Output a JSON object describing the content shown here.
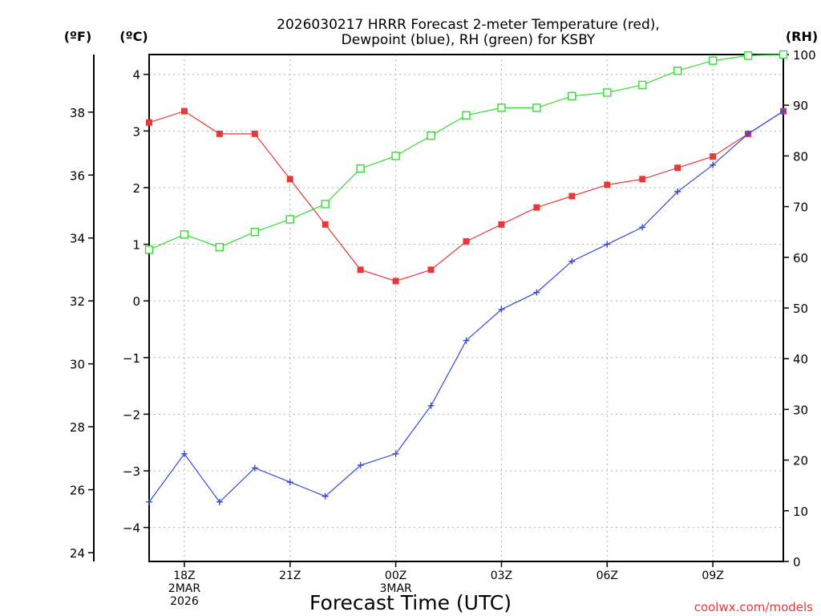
{
  "chart_data": {
    "type": "line",
    "title_lines": [
      "2026030217 HRRR Forecast 2-meter Temperature (red),",
      "Dewpoint (blue), RH (green) for KSBY"
    ],
    "xlabel": "Forecast Time (UTC)",
    "credit": "coolwx.com/models",
    "units": {
      "fahrenheit": "(ºF)",
      "celsius": "(ºC)",
      "rh": "(RH)"
    },
    "x_hours": [
      17,
      18,
      19,
      20,
      21,
      22,
      23,
      24,
      25,
      26,
      27,
      28,
      29,
      30,
      31,
      32,
      33,
      34,
      35
    ],
    "x_ticks": [
      {
        "hour": 18,
        "lines": [
          "18Z",
          "2MAR",
          "2026"
        ]
      },
      {
        "hour": 21,
        "lines": [
          "21Z"
        ]
      },
      {
        "hour": 24,
        "lines": [
          "00Z",
          "3MAR"
        ]
      },
      {
        "hour": 27,
        "lines": [
          "03Z"
        ]
      },
      {
        "hour": 30,
        "lines": [
          "06Z"
        ]
      },
      {
        "hour": 33,
        "lines": [
          "09Z"
        ]
      }
    ],
    "xlim": [
      17,
      35
    ],
    "ylim_celsius": [
      -4.6,
      4.35
    ],
    "ylim_fahrenheit": [
      23.72,
      39.83
    ],
    "ylim_rh": [
      0,
      100
    ],
    "celsius_ticks": [
      -4,
      -3,
      -2,
      -1,
      0,
      1,
      2,
      3,
      4
    ],
    "fahrenheit_ticks": [
      24,
      26,
      28,
      30,
      32,
      34,
      36,
      38
    ],
    "rh_ticks": [
      0,
      10,
      20,
      30,
      40,
      50,
      60,
      70,
      80,
      90,
      100
    ],
    "gridlines": true,
    "series": [
      {
        "name": "Temperature",
        "axis": "celsius",
        "color": "#e8393a",
        "marker": "filled-square",
        "values": [
          3.15,
          3.35,
          2.95,
          2.95,
          2.15,
          1.35,
          0.55,
          0.35,
          0.55,
          1.05,
          1.35,
          1.65,
          1.85,
          2.05,
          2.15,
          2.35,
          2.55,
          2.95,
          3.35
        ]
      },
      {
        "name": "Dewpoint",
        "axis": "celsius",
        "color": "#3548e0",
        "marker": "plus",
        "values": [
          -3.55,
          -2.7,
          -3.55,
          -2.95,
          -3.2,
          -3.45,
          -2.9,
          -2.7,
          -1.85,
          -0.7,
          -0.15,
          0.15,
          0.7,
          1.0,
          1.3,
          1.93,
          2.4,
          2.95,
          3.35
        ]
      },
      {
        "name": "RH",
        "axis": "rh",
        "color": "#33dd33",
        "marker": "open-square",
        "values": [
          61.5,
          64.5,
          62.0,
          65.0,
          67.5,
          70.5,
          77.5,
          80.0,
          84.0,
          88.0,
          89.5,
          89.5,
          91.8,
          92.5,
          94.0,
          96.8,
          98.8,
          99.8,
          100.0
        ]
      }
    ]
  }
}
